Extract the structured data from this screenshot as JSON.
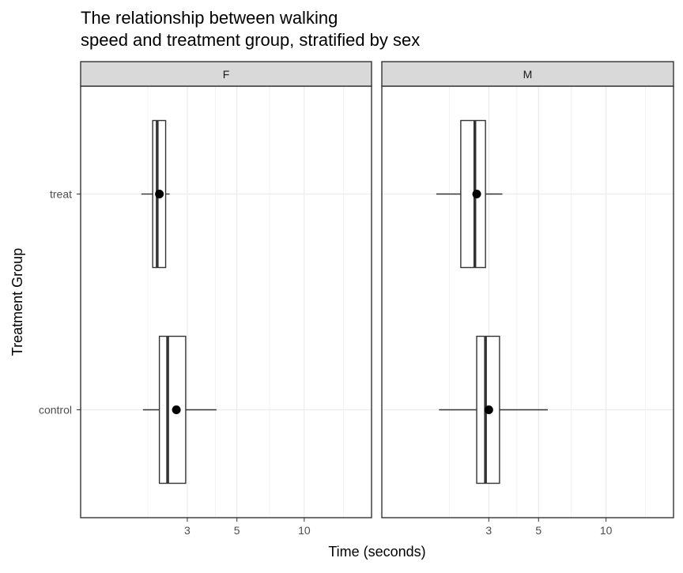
{
  "chart_data": {
    "type": "boxplot",
    "title": "The relationship between walking\n  speed and treatment group, stratified by sex",
    "xlabel": "Time (seconds)",
    "ylabel": "Treatment Group",
    "x_scale": "log10",
    "xlim": [
      1,
      20
    ],
    "x_ticks": [
      3,
      5,
      10
    ],
    "x_minor_ticks": [
      2,
      4,
      7,
      15
    ],
    "categories": [
      "control",
      "treat"
    ],
    "grid": true,
    "facets": [
      {
        "label": "F",
        "boxes": [
          {
            "group": "control",
            "whisker_low": 1.9,
            "q1": 2.25,
            "median": 2.45,
            "q3": 2.95,
            "whisker_high": 4.05,
            "mean": 2.68
          },
          {
            "group": "treat",
            "whisker_low": 1.87,
            "q1": 2.1,
            "median": 2.2,
            "q3": 2.4,
            "whisker_high": 2.5,
            "mean": 2.25
          }
        ]
      },
      {
        "label": "M",
        "boxes": [
          {
            "group": "control",
            "whisker_low": 1.8,
            "q1": 2.65,
            "median": 2.9,
            "q3": 3.35,
            "whisker_high": 5.5,
            "mean": 3.0
          },
          {
            "group": "treat",
            "whisker_low": 1.75,
            "q1": 2.25,
            "median": 2.6,
            "q3": 2.9,
            "whisker_high": 3.45,
            "mean": 2.65
          }
        ]
      }
    ]
  }
}
